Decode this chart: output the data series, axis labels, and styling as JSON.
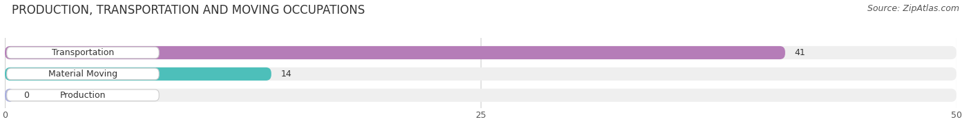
{
  "title": "PRODUCTION, TRANSPORTATION AND MOVING OCCUPATIONS",
  "source": "Source: ZipAtlas.com",
  "categories": [
    "Transportation",
    "Material Moving",
    "Production"
  ],
  "values": [
    41,
    14,
    0
  ],
  "bar_colors": [
    "#b57db8",
    "#4dbfba",
    "#a8aee0"
  ],
  "xlim": [
    0,
    50
  ],
  "xticks": [
    0,
    25,
    50
  ],
  "background_color": "#ffffff",
  "bar_bg_color": "#efefef",
  "title_fontsize": 12,
  "label_fontsize": 9,
  "value_fontsize": 9,
  "source_fontsize": 9
}
